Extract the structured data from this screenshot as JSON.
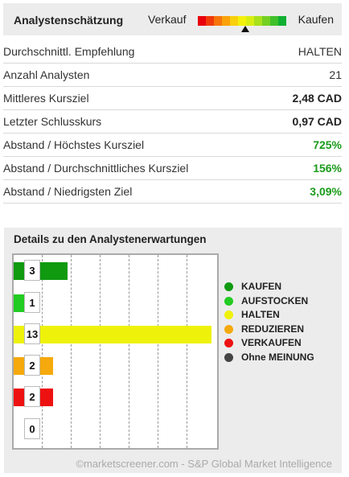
{
  "consensus": {
    "title": "Analystenschätzung",
    "scale_left": "Verkauf",
    "scale_right": "Kaufen",
    "scale_colors": [
      "#e8000b",
      "#f03a0a",
      "#f6740a",
      "#faa20a",
      "#f8d00b",
      "#f4f10c",
      "#d8ee12",
      "#a8e01a",
      "#74d022",
      "#40c02a",
      "#10b032"
    ],
    "marker_position": 0.56
  },
  "rows": [
    {
      "label": "Durchschnittl. Empfehlung",
      "value": "HALTEN"
    },
    {
      "label": "Anzahl Analysten",
      "value": "21"
    },
    {
      "label": "Mittleres Kursziel",
      "value": "2,48  CAD"
    },
    {
      "label": "Letzter Schlusskurs",
      "value": "0,97  CAD"
    },
    {
      "label": "Abstand / Höchstes Kursziel",
      "value": "725%"
    },
    {
      "label": "Abstand / Durchschnittliches Kursziel",
      "value": "156%"
    },
    {
      "label": "Abstand / Niedrigsten Ziel",
      "value": "3,09%"
    }
  ],
  "details": {
    "title": "Details zu den Analystenerwartungen",
    "bars": [
      {
        "label": "KAUFEN",
        "count": "3",
        "color": "#109a10"
      },
      {
        "label": "AUFSTOCKEN",
        "count": "1",
        "color": "#22cc22"
      },
      {
        "label": "HALTEN",
        "count": "13",
        "color": "#eef20a"
      },
      {
        "label": "REDUZIEREN",
        "count": "2",
        "color": "#f5a90c"
      },
      {
        "label": "VERKAUFEN",
        "count": "2",
        "color": "#ee1111"
      },
      {
        "label": "Ohne MEINUNG",
        "count": "0",
        "color": "#444444"
      }
    ],
    "max_count": 13
  },
  "footer": "©marketscreener.com - S&P Global Market Intelligence"
}
